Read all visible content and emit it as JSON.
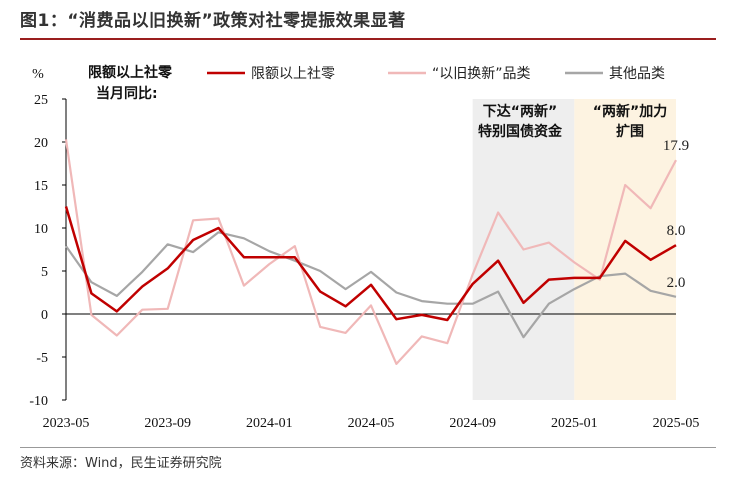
{
  "figure": {
    "title": "图1：“消费品以旧换新”政策对社零提振效果显著",
    "source": "资料来源：Wind，民生证券研究院"
  },
  "colors": {
    "series_1": "#c00000",
    "series_2": "#f0b8b8",
    "series_3": "#a6a6a6",
    "shade_1": "#eeeeee",
    "shade_2": "#fdf3e1",
    "title_rule": "#9a1e1e"
  },
  "chart_data": {
    "type": "line",
    "ylabel": "%",
    "ylim": [
      -10,
      25
    ],
    "yticks": [
      -10,
      -5,
      0,
      5,
      10,
      15,
      20,
      25
    ],
    "x": [
      "2023-05",
      "2023-06",
      "2023-07",
      "2023-08",
      "2023-09",
      "2023-10",
      "2023-11",
      "2023-12",
      "2024-01",
      "2024-02",
      "2024-03",
      "2024-04",
      "2024-05",
      "2024-06",
      "2024-07",
      "2024-08",
      "2024-09",
      "2024-10",
      "2024-11",
      "2024-12",
      "2025-01",
      "2025-02",
      "2025-03",
      "2025-04",
      "2025-05"
    ],
    "xticks": [
      "2023-05",
      "2023-09",
      "2024-01",
      "2024-05",
      "2024-09",
      "2025-01",
      "2025-05"
    ],
    "legend_header": [
      "限额以上社零",
      "当月同比:"
    ],
    "series": [
      {
        "name": "限额以上社零",
        "values": [
          12.5,
          2.4,
          0.3,
          3.2,
          5.3,
          8.6,
          10.0,
          6.6,
          6.6,
          6.6,
          2.6,
          0.9,
          3.4,
          -0.6,
          -0.1,
          -0.7,
          3.5,
          6.2,
          1.3,
          4.0,
          4.2,
          4.2,
          8.5,
          6.3,
          8.0
        ]
      },
      {
        "name": "“以旧换新”品类",
        "values": [
          20.3,
          -0.1,
          -2.5,
          0.5,
          0.6,
          10.9,
          11.1,
          3.3,
          5.8,
          7.9,
          -1.5,
          -2.2,
          1.0,
          -5.8,
          -2.6,
          -3.4,
          4.6,
          11.8,
          7.5,
          8.3,
          6.0,
          4.0,
          15.0,
          12.3,
          17.9
        ]
      },
      {
        "name": "其他品类",
        "values": [
          7.9,
          3.7,
          2.1,
          4.9,
          8.1,
          7.2,
          9.5,
          8.8,
          7.3,
          6.2,
          5.0,
          2.9,
          4.9,
          2.5,
          1.5,
          1.2,
          1.2,
          2.6,
          -2.7,
          1.2,
          2.9,
          4.4,
          4.7,
          2.7,
          2.0
        ]
      }
    ],
    "periods": [
      {
        "label": [
          "下达“两新”",
          "特别国债资金"
        ],
        "start": "2024-09",
        "end": "2025-01"
      },
      {
        "label": [
          "“两新”加力",
          "扩围"
        ],
        "start": "2025-01",
        "end": "2025-05"
      }
    ],
    "end_labels": [
      "8.0",
      "17.9",
      "2.0"
    ],
    "legend_position": "top",
    "grid": false
  }
}
